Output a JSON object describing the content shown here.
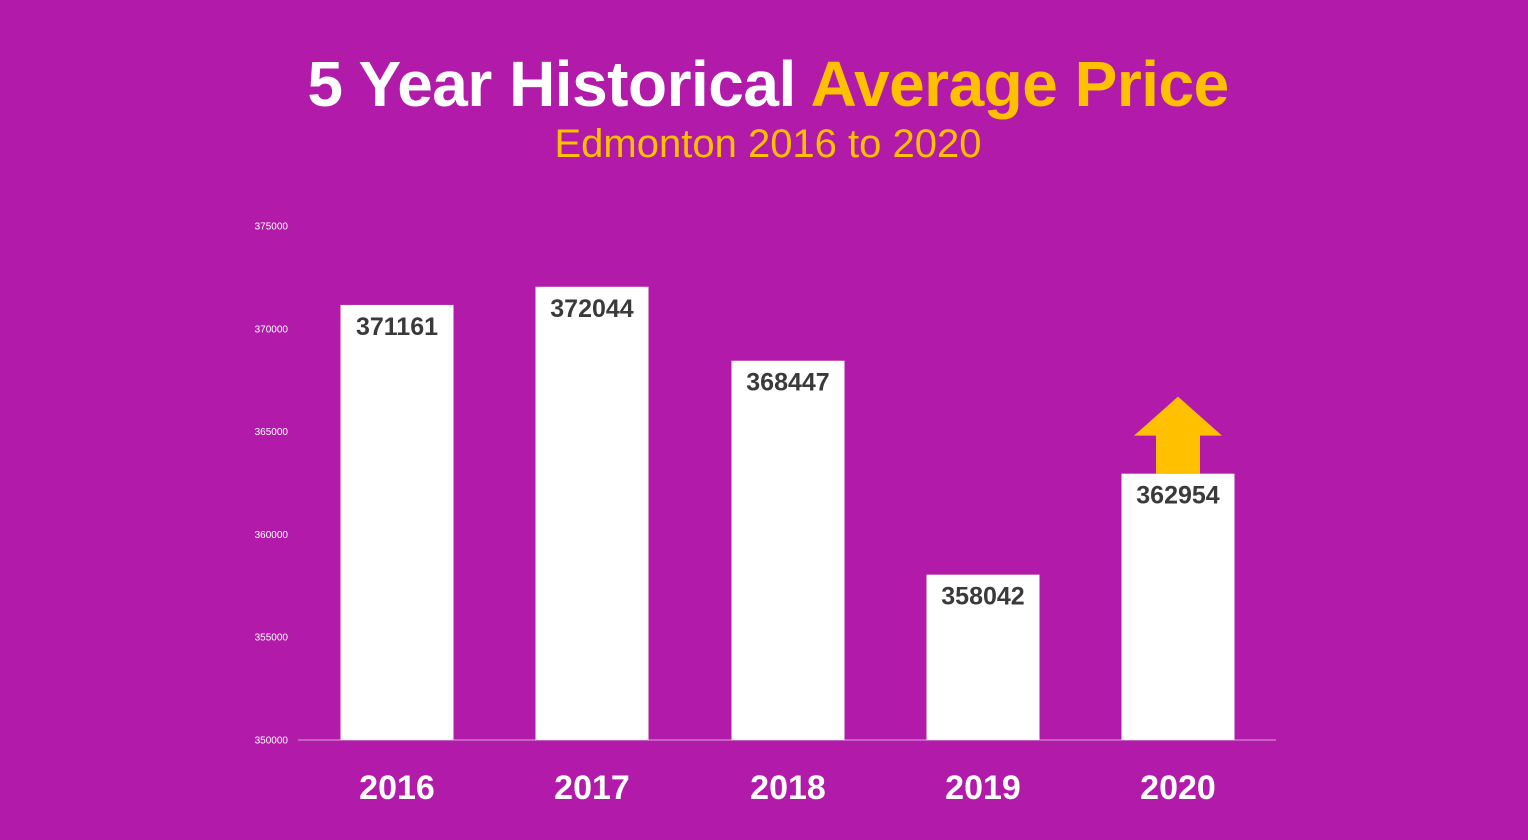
{
  "header": {
    "title_part1": "5 Year Historical",
    "title_part2": "Average Price",
    "subtitle": "Edmonton 2016 to 2020"
  },
  "colors": {
    "background": "#b21aaa",
    "bar": "#ffffff",
    "accent": "#ffc000",
    "data_label": "#3a3a3a",
    "axis_line": "#d9a6d6"
  },
  "chart_data": {
    "type": "bar",
    "title": "5 Year Historical Average Price",
    "subtitle": "Edmonton 2016 to 2020",
    "categories": [
      "2016",
      "2017",
      "2018",
      "2019",
      "2020"
    ],
    "values": [
      371161,
      372044,
      368447,
      358042,
      362954
    ],
    "ylim": [
      350000,
      375000
    ],
    "yticks": [
      "350000",
      "355000",
      "360000",
      "365000",
      "370000",
      "375000"
    ],
    "xlabel": "",
    "ylabel": "",
    "grid": false,
    "legend": "none",
    "annotations": [
      {
        "type": "up-arrow-icon",
        "category": "2020",
        "color": "#ffc000"
      }
    ]
  }
}
